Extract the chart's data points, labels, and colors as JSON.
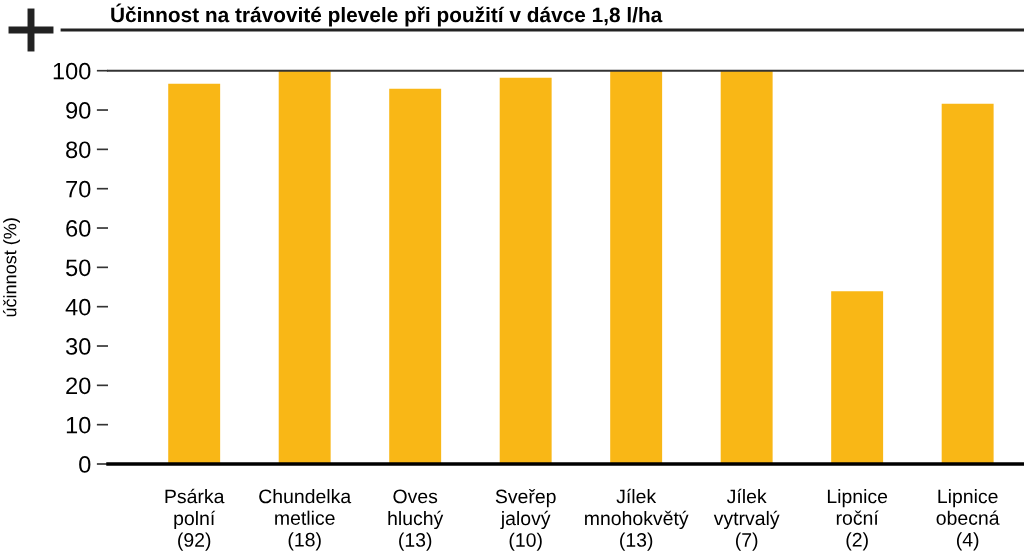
{
  "chart_data": {
    "type": "bar",
    "title": "Účinnost na trávovité plevele při použití v dávce 1,8 l/ha",
    "ylabel": "účinnost (%)",
    "categories": [
      "Psárka\npolní\n(92)",
      "Chundelka\nmetlice\n(18)",
      "Oves\nhluchý\n(13)",
      "Sveřep\njalový\n(10)",
      "Jílek\nmnohokvětý\n(13)",
      "Jílek\nvytrvalý\n(7)",
      "Lipnice\nroční\n(2)",
      "Lipnice\nobecná\n(4)"
    ],
    "values": [
      96.7,
      100,
      95.4,
      98.2,
      100,
      100,
      43.9,
      91.6
    ],
    "color": "#f9b716",
    "ylim": [
      0,
      100
    ],
    "yticks": [
      0,
      10,
      20,
      30,
      40,
      50,
      60,
      70,
      80,
      90,
      100
    ],
    "grid": false,
    "legend": false
  }
}
